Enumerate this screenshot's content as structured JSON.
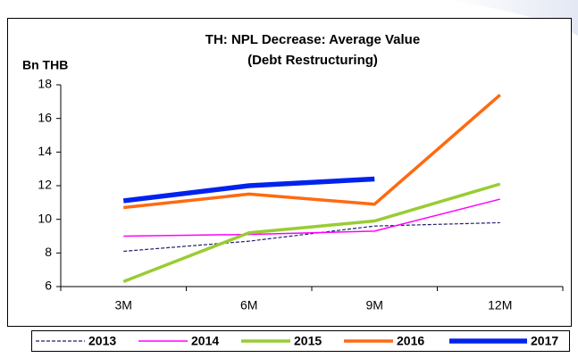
{
  "chart_data": {
    "type": "line",
    "title": "TH: NPL Decrease: Average Value",
    "subtitle": "(Debt Restructuring)",
    "y_label": "Bn THB",
    "categories": [
      "3M",
      "6M",
      "9M",
      "12M"
    ],
    "ylim": [
      6,
      18
    ],
    "yticks": [
      6,
      8,
      10,
      12,
      14,
      16,
      18
    ],
    "legend": "bottom",
    "series": [
      {
        "name": "2013",
        "color": "#1f1f6e",
        "line_width": 1.2,
        "dashed": true,
        "values": [
          8.1,
          8.7,
          9.6,
          9.8
        ]
      },
      {
        "name": "2014",
        "color": "#ff00ff",
        "line_width": 1.5,
        "dashed": false,
        "values": [
          9.0,
          9.1,
          9.3,
          11.2
        ]
      },
      {
        "name": "2015",
        "color": "#99cc33",
        "line_width": 3.5,
        "dashed": false,
        "values": [
          6.3,
          9.2,
          9.9,
          12.1
        ]
      },
      {
        "name": "2016",
        "color": "#ff6a10",
        "line_width": 3.5,
        "dashed": false,
        "values": [
          10.7,
          11.5,
          10.9,
          17.4
        ]
      },
      {
        "name": "2017",
        "color": "#0022ee",
        "line_width": 5.5,
        "dashed": false,
        "values": [
          11.1,
          12.0,
          12.4,
          null
        ]
      }
    ]
  }
}
